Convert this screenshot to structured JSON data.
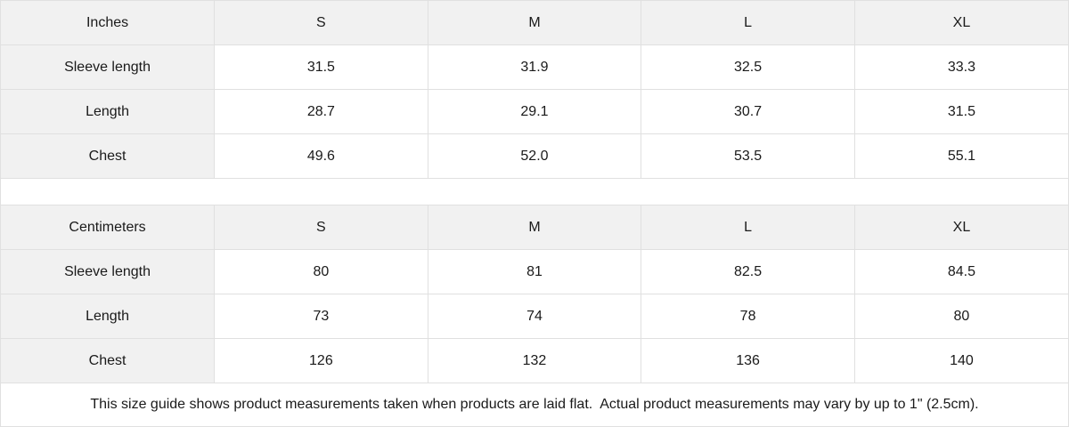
{
  "colors": {
    "header_bg": "#f1f1f1",
    "row_bg": "#ffffff",
    "border": "#e0e0e0",
    "text": "#1a1a1a"
  },
  "tables": [
    {
      "unit_label": "Inches",
      "size_headers": [
        "S",
        "M",
        "L",
        "XL"
      ],
      "rows": [
        {
          "label": "Sleeve length",
          "values": [
            "31.5",
            "31.9",
            "32.5",
            "33.3"
          ]
        },
        {
          "label": "Length",
          "values": [
            "28.7",
            "29.1",
            "30.7",
            "31.5"
          ]
        },
        {
          "label": "Chest",
          "values": [
            "49.6",
            "52.0",
            "53.5",
            "55.1"
          ]
        }
      ]
    },
    {
      "unit_label": "Centimeters",
      "size_headers": [
        "S",
        "M",
        "L",
        "XL"
      ],
      "rows": [
        {
          "label": "Sleeve length",
          "values": [
            "80",
            "81",
            "82.5",
            "84.5"
          ]
        },
        {
          "label": "Length",
          "values": [
            "73",
            "74",
            "78",
            "80"
          ]
        },
        {
          "label": "Chest",
          "values": [
            "126",
            "132",
            "136",
            "140"
          ]
        }
      ]
    }
  ],
  "footer": {
    "note": "This size guide shows product measurements taken when products are laid flat.  Actual product measurements may vary by up to 1\" (2.5cm)."
  }
}
